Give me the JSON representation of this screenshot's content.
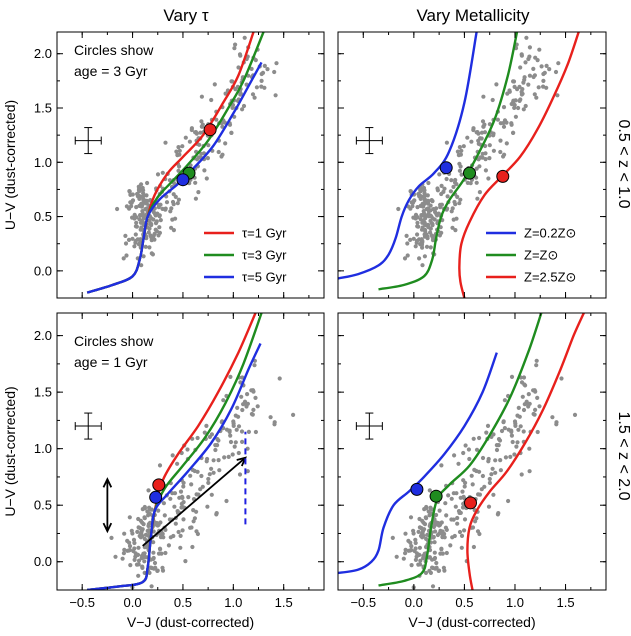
{
  "titles": {
    "left": "Vary τ",
    "right": "Vary Metallicity"
  },
  "row_labels": {
    "top": "0.5 < z < 1.0",
    "bottom": "1.5 < z < 2.0"
  },
  "annotations": {
    "top_left": [
      "Circles show",
      "age = 3 Gyr"
    ],
    "bottom_left": [
      "Circles show",
      "age = 1 Gyr"
    ]
  },
  "colors": {
    "red": "#e8201c",
    "green": "#1f8c1f",
    "blue": "#1f2ee0",
    "points": "#8c8c8c",
    "dashed": "#2020e0"
  },
  "chart_data": [
    {
      "id": "top-left",
      "type": "line",
      "xlabel": "",
      "ylabel": "U−V (dust-corrected)",
      "xlim": [
        -0.75,
        1.9
      ],
      "ylim": [
        -0.25,
        2.2
      ],
      "xticks": [
        "-0.5",
        "0.0",
        "0.5",
        "1.0",
        "1.5"
      ],
      "yticks": [
        "0.0",
        "0.5",
        "1.0",
        "1.5",
        "2.0"
      ],
      "legend": "bottom-right",
      "series": [
        {
          "name": "τ=1 Gyr",
          "color": "red",
          "x": [
            -0.45,
            -0.2,
            0.0,
            0.07,
            0.11,
            0.15,
            0.22,
            0.35,
            0.5,
            0.7,
            0.9,
            1.05,
            1.2
          ],
          "y": [
            -0.2,
            -0.13,
            -0.05,
            0.1,
            0.3,
            0.5,
            0.7,
            0.9,
            1.05,
            1.25,
            1.55,
            1.8,
            2.2
          ]
        },
        {
          "name": "τ=3 Gyr",
          "color": "green",
          "x": [
            -0.45,
            -0.2,
            0.0,
            0.07,
            0.11,
            0.15,
            0.25,
            0.4,
            0.55,
            0.75,
            0.95,
            1.1,
            1.3
          ],
          "y": [
            -0.2,
            -0.13,
            -0.05,
            0.1,
            0.3,
            0.5,
            0.68,
            0.83,
            0.98,
            1.2,
            1.5,
            1.75,
            2.2
          ]
        },
        {
          "name": "τ=5 Gyr",
          "color": "blue",
          "x": [
            -0.45,
            -0.2,
            0.0,
            0.07,
            0.11,
            0.15,
            0.27,
            0.45,
            0.6,
            0.8,
            1.0,
            1.15,
            1.28
          ],
          "y": [
            -0.2,
            -0.13,
            -0.05,
            0.1,
            0.3,
            0.5,
            0.66,
            0.8,
            0.94,
            1.15,
            1.45,
            1.7,
            1.92
          ]
        }
      ],
      "markers": [
        {
          "color": "red",
          "x": 0.77,
          "y": 1.3
        },
        {
          "color": "green",
          "x": 0.56,
          "y": 0.9
        },
        {
          "color": "blue",
          "x": 0.5,
          "y": 0.84
        }
      ],
      "scatter": {
        "center_x": 0.45,
        "center_y": 1.0,
        "n": 330,
        "seed": 11
      }
    },
    {
      "id": "top-right",
      "type": "line",
      "xlabel": "",
      "ylabel": "",
      "xlim": [
        -0.75,
        1.9
      ],
      "ylim": [
        -0.25,
        2.2
      ],
      "xticks": [
        "-0.5",
        "0.0",
        "0.5",
        "1.0",
        "1.5"
      ],
      "yticks": [
        "0.0",
        "0.5",
        "1.0",
        "1.5",
        "2.0"
      ],
      "legend": "bottom-right",
      "series": [
        {
          "name": "Z=0.2Z⊙",
          "color": "blue",
          "x": [
            -0.75,
            -0.55,
            -0.35,
            -0.25,
            -0.18,
            -0.12,
            -0.05,
            0.05,
            0.2,
            0.35,
            0.5,
            0.62
          ],
          "y": [
            -0.07,
            -0.03,
            0.05,
            0.15,
            0.3,
            0.5,
            0.65,
            0.78,
            0.9,
            1.1,
            1.55,
            2.2
          ]
        },
        {
          "name": "Z=Z⊙",
          "color": "green",
          "x": [
            -0.35,
            -0.1,
            0.1,
            0.18,
            0.22,
            0.27,
            0.35,
            0.5,
            0.65,
            0.8,
            0.93,
            1.02
          ],
          "y": [
            -0.17,
            -0.13,
            -0.05,
            0.1,
            0.3,
            0.5,
            0.65,
            0.85,
            1.1,
            1.4,
            1.8,
            2.2
          ]
        },
        {
          "name": "Z=2.5Z⊙",
          "color": "red",
          "x": [
            0.5,
            0.46,
            0.45,
            0.47,
            0.55,
            0.7,
            0.87,
            1.05,
            1.22,
            1.38,
            1.52,
            1.63
          ],
          "y": [
            -0.25,
            -0.1,
            0.05,
            0.25,
            0.45,
            0.7,
            0.87,
            1.05,
            1.3,
            1.6,
            1.9,
            2.2
          ]
        }
      ],
      "markers": [
        {
          "color": "blue",
          "x": 0.32,
          "y": 0.95
        },
        {
          "color": "green",
          "x": 0.55,
          "y": 0.9
        },
        {
          "color": "red",
          "x": 0.88,
          "y": 0.87
        }
      ],
      "scatter": {
        "center_x": 0.45,
        "center_y": 1.0,
        "n": 330,
        "seed": 11
      }
    },
    {
      "id": "bottom-left",
      "type": "line",
      "xlabel": "V−J (dust-corrected)",
      "ylabel": "U−V (dust-corrected)",
      "xlim": [
        -0.75,
        1.9
      ],
      "ylim": [
        -0.25,
        2.2
      ],
      "xticks": [
        "-0.5",
        "0.0",
        "0.5",
        "1.0",
        "1.5"
      ],
      "yticks": [
        "0.0",
        "0.5",
        "1.0",
        "1.5",
        "2.0"
      ],
      "series": [
        {
          "name": "red",
          "color": "red",
          "x": [
            -0.45,
            -0.15,
            0.1,
            0.15,
            0.18,
            0.22,
            0.3,
            0.45,
            0.65,
            0.85,
            1.05,
            1.22
          ],
          "y": [
            -0.25,
            -0.22,
            -0.18,
            -0.05,
            0.2,
            0.45,
            0.72,
            0.95,
            1.2,
            1.5,
            1.85,
            2.2
          ]
        },
        {
          "name": "green",
          "color": "green",
          "x": [
            -0.45,
            -0.15,
            0.1,
            0.15,
            0.18,
            0.22,
            0.32,
            0.5,
            0.72,
            0.92,
            1.1,
            1.28
          ],
          "y": [
            -0.25,
            -0.22,
            -0.18,
            -0.05,
            0.2,
            0.45,
            0.65,
            0.85,
            1.1,
            1.4,
            1.75,
            2.2
          ]
        },
        {
          "name": "blue",
          "color": "blue",
          "x": [
            -0.45,
            -0.15,
            0.1,
            0.15,
            0.18,
            0.22,
            0.35,
            0.55,
            0.78,
            0.98,
            1.15,
            1.27
          ],
          "y": [
            -0.25,
            -0.22,
            -0.18,
            -0.05,
            0.2,
            0.45,
            0.6,
            0.8,
            1.05,
            1.35,
            1.7,
            1.93
          ]
        }
      ],
      "markers": [
        {
          "color": "red",
          "x": 0.26,
          "y": 0.68
        },
        {
          "color": "blue",
          "x": 0.23,
          "y": 0.57
        }
      ],
      "scatter": {
        "center_x": 0.45,
        "center_y": 0.5,
        "n": 300,
        "seed": 29
      },
      "arrows": [
        {
          "kind": "double",
          "x1": -0.25,
          "y1": 0.73,
          "x2": -0.25,
          "y2": 0.27
        },
        {
          "kind": "single",
          "x1": 0.1,
          "y1": 0.14,
          "x2": 1.12,
          "y2": 0.92
        }
      ],
      "dashed_line": {
        "x": 1.12,
        "y1": 0.33,
        "y2": 1.15
      }
    },
    {
      "id": "bottom-right",
      "type": "line",
      "xlabel": "V−J (dust-corrected)",
      "ylabel": "",
      "xlim": [
        -0.75,
        1.9
      ],
      "ylim": [
        -0.25,
        2.2
      ],
      "xticks": [
        "-0.5",
        "0.0",
        "0.5",
        "1.0",
        "1.5"
      ],
      "yticks": [
        "0.0",
        "0.5",
        "1.0",
        "1.5",
        "2.0"
      ],
      "series": [
        {
          "name": "blue",
          "color": "blue",
          "x": [
            -0.75,
            -0.55,
            -0.42,
            -0.35,
            -0.3,
            -0.2,
            -0.05,
            0.1,
            0.3,
            0.5,
            0.68,
            0.82
          ],
          "y": [
            -0.1,
            -0.07,
            0.0,
            0.1,
            0.3,
            0.5,
            0.62,
            0.75,
            0.95,
            1.2,
            1.5,
            1.85
          ]
        },
        {
          "name": "green",
          "color": "green",
          "x": [
            -0.35,
            -0.1,
            0.08,
            0.13,
            0.17,
            0.23,
            0.35,
            0.55,
            0.75,
            0.95,
            1.13,
            1.26
          ],
          "y": [
            -0.21,
            -0.17,
            -0.1,
            0.05,
            0.3,
            0.55,
            0.68,
            0.85,
            1.12,
            1.45,
            1.85,
            2.2
          ]
        },
        {
          "name": "red",
          "color": "red",
          "x": [
            0.58,
            0.55,
            0.53,
            0.55,
            0.62,
            0.75,
            0.92,
            1.1,
            1.28,
            1.45,
            1.58,
            1.68
          ],
          "y": [
            -0.25,
            -0.1,
            0.1,
            0.3,
            0.45,
            0.62,
            0.8,
            1.05,
            1.35,
            1.7,
            2.0,
            2.2
          ]
        }
      ],
      "markers": [
        {
          "color": "blue",
          "x": 0.03,
          "y": 0.64
        },
        {
          "color": "green",
          "x": 0.22,
          "y": 0.58
        },
        {
          "color": "red",
          "x": 0.56,
          "y": 0.52
        }
      ],
      "scatter": {
        "center_x": 0.45,
        "center_y": 0.5,
        "n": 300,
        "seed": 29
      }
    }
  ]
}
